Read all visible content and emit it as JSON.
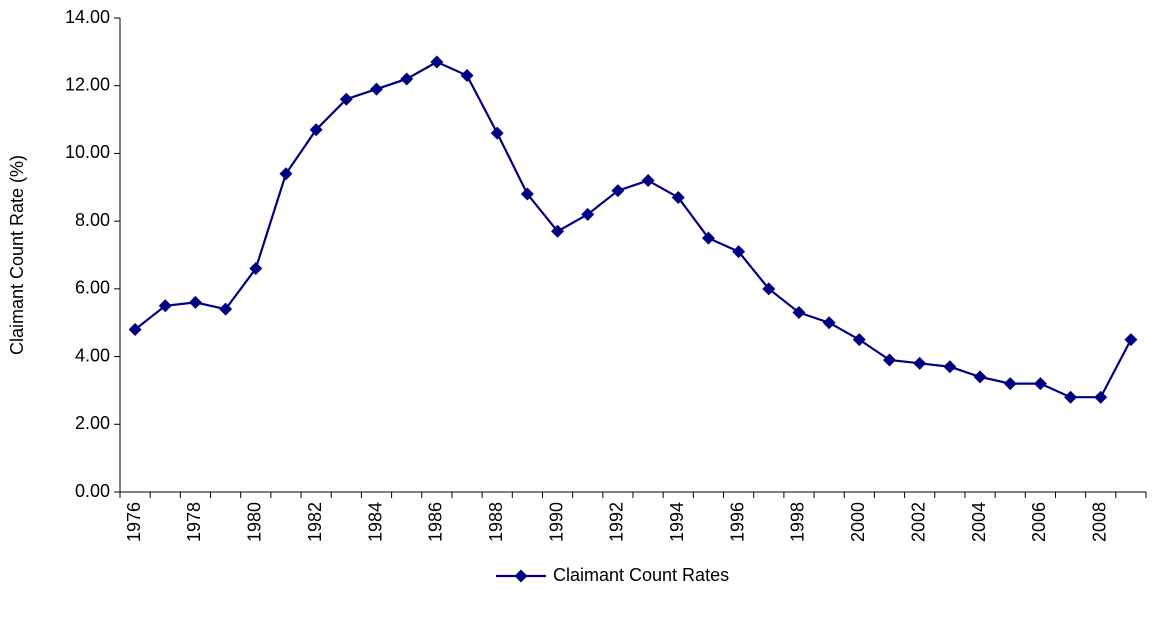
{
  "chart_data": {
    "type": "line",
    "y_label": "Claimant Count Rate (%)",
    "categories": [
      "1976",
      null,
      "1978",
      null,
      "1980",
      null,
      "1982",
      null,
      "1984",
      null,
      "1986",
      null,
      "1988",
      null,
      "1990",
      null,
      "1992",
      null,
      "1994",
      null,
      "1996",
      null,
      "1998",
      null,
      "2000",
      null,
      "2002",
      null,
      "2004",
      null,
      "2006",
      null,
      "2008",
      null
    ],
    "series": [
      {
        "name": "Claimant Count Rates",
        "color": "#000080",
        "values": [
          4.8,
          5.5,
          5.6,
          5.4,
          6.6,
          9.4,
          10.7,
          11.6,
          11.9,
          12.2,
          12.7,
          12.3,
          10.6,
          8.8,
          7.7,
          8.2,
          8.9,
          9.2,
          8.7,
          7.5,
          7.1,
          6.0,
          5.3,
          5.0,
          4.5,
          3.9,
          3.8,
          3.7,
          3.4,
          3.2,
          3.2,
          2.8,
          2.8,
          4.5
        ]
      }
    ],
    "ylim": [
      0,
      14
    ],
    "yticks": [
      {
        "value": 0,
        "label": "0.00"
      },
      {
        "value": 2,
        "label": "2.00"
      },
      {
        "value": 4,
        "label": "4.00"
      },
      {
        "value": 6,
        "label": "6.00"
      },
      {
        "value": 8,
        "label": "8.00"
      },
      {
        "value": 10,
        "label": "10.00"
      },
      {
        "value": 12,
        "label": "12.00"
      },
      {
        "value": 14,
        "label": "14.00"
      }
    ],
    "grid": false,
    "legend": "bottom"
  }
}
